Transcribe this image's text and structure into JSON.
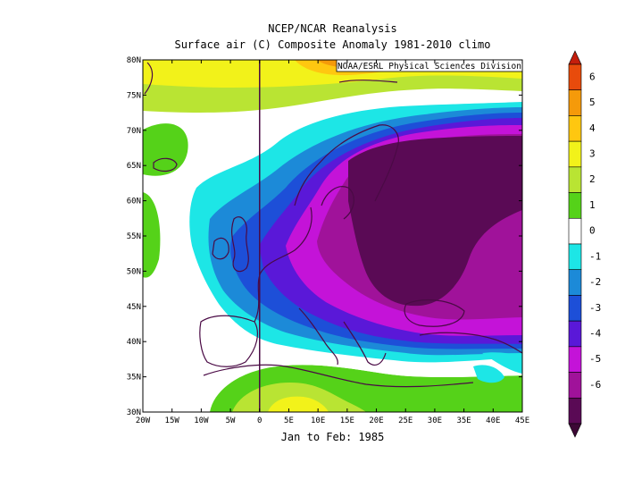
{
  "header": {
    "title_line1": "NCEP/NCAR Reanalysis",
    "title_line2": "Surface air (C) Composite Anomaly 1981-2010 climo"
  },
  "map": {
    "credit": "NOAA/ESRL Physical Sciences Division",
    "period_label": "Jan to Feb: 1985",
    "lon_ticks": [
      "20W",
      "15W",
      "10W",
      "5W",
      "0",
      "5E",
      "10E",
      "15E",
      "20E",
      "25E",
      "30E",
      "35E",
      "40E",
      "45E"
    ],
    "lat_ticks": [
      "80N",
      "75N",
      "70N",
      "65N",
      "60N",
      "55N",
      "50N",
      "45N",
      "40N",
      "35N",
      "30N"
    ],
    "lon_range": [
      -20,
      45
    ],
    "lat_range": [
      30,
      80
    ]
  },
  "colorbar": {
    "labels": [
      "6",
      "5",
      "4",
      "3",
      "2",
      "1",
      "0",
      "-1",
      "-2",
      "-3",
      "-4",
      "-5",
      "-6"
    ],
    "colors": [
      "#e84b0c",
      "#f59a0a",
      "#ffc710",
      "#f2f21a",
      "#b9e433",
      "#55d219",
      "#ffffff",
      "#1de6e6",
      "#1c8ad8",
      "#1d4fd8",
      "#5a18d8",
      "#c413d8",
      "#a0129a",
      "#5a0a55"
    ],
    "cap_top": "#c41e0c",
    "cap_bottom": "#3c0835"
  }
}
